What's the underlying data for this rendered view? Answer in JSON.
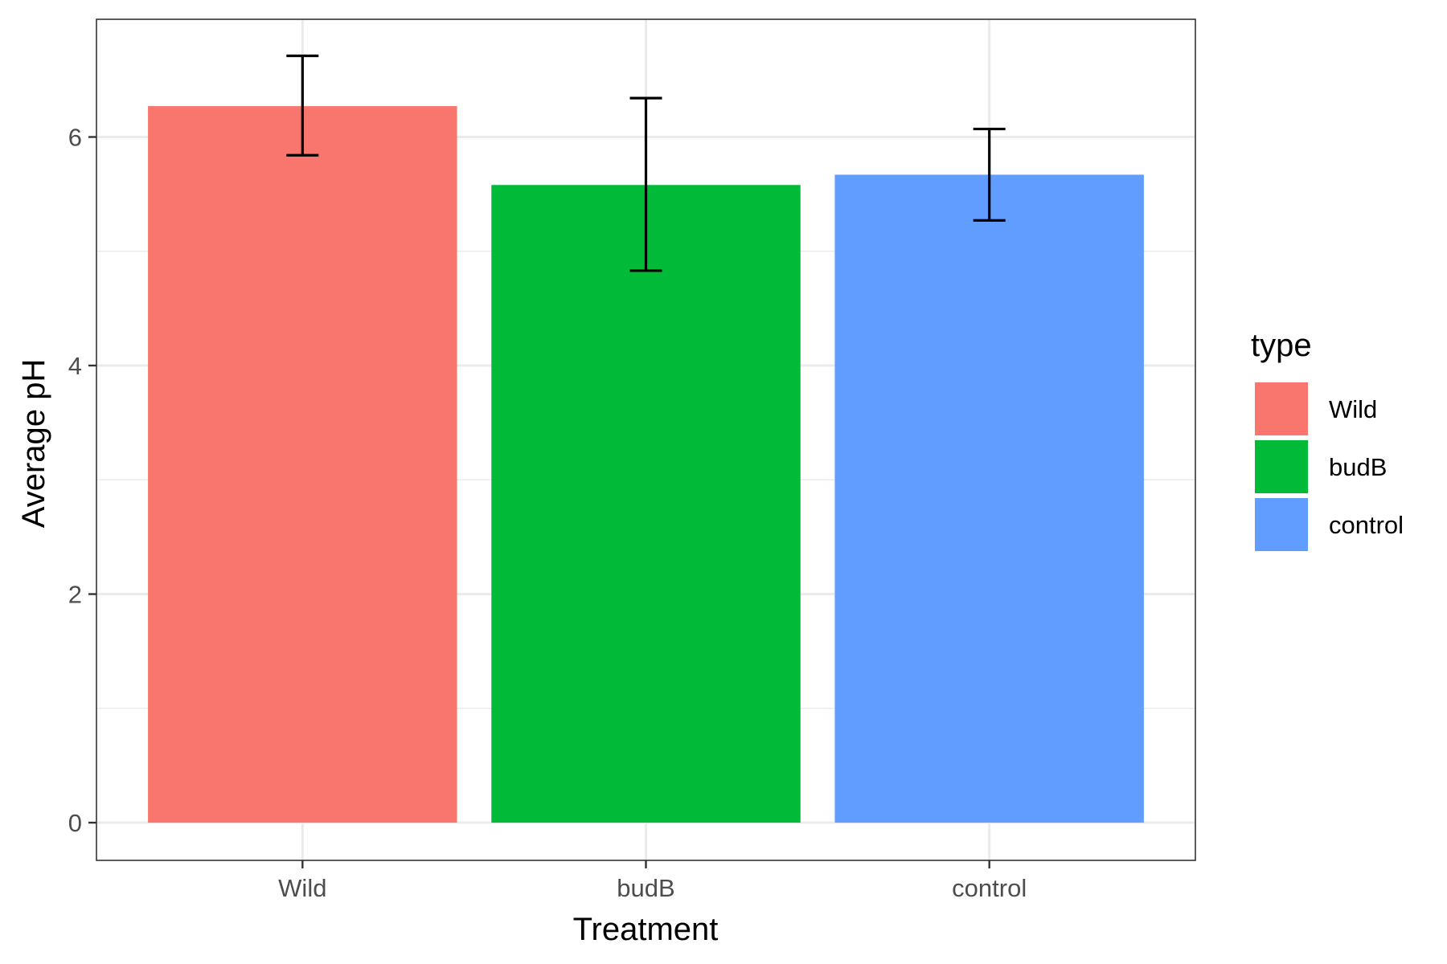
{
  "chart_data": {
    "type": "bar",
    "categories": [
      "Wild",
      "budB",
      "control"
    ],
    "values": [
      6.27,
      5.58,
      5.67
    ],
    "error_bars": [
      {
        "low": 5.84,
        "high": 6.71
      },
      {
        "low": 4.83,
        "high": 6.34
      },
      {
        "low": 5.27,
        "high": 6.07
      }
    ],
    "colors": [
      "#F8766D",
      "#00BA38",
      "#619CFF"
    ],
    "xlabel": "Treatment",
    "ylabel": "Average pH",
    "ylim": [
      -0.33,
      7.03
    ],
    "y_ticks": [
      0,
      2,
      4,
      6
    ],
    "y_tick_labels": [
      "0",
      "2",
      "4",
      "6"
    ],
    "grid": true,
    "legend": {
      "title": "type",
      "position": "right",
      "items": [
        "Wild",
        "budB",
        "control"
      ]
    }
  }
}
